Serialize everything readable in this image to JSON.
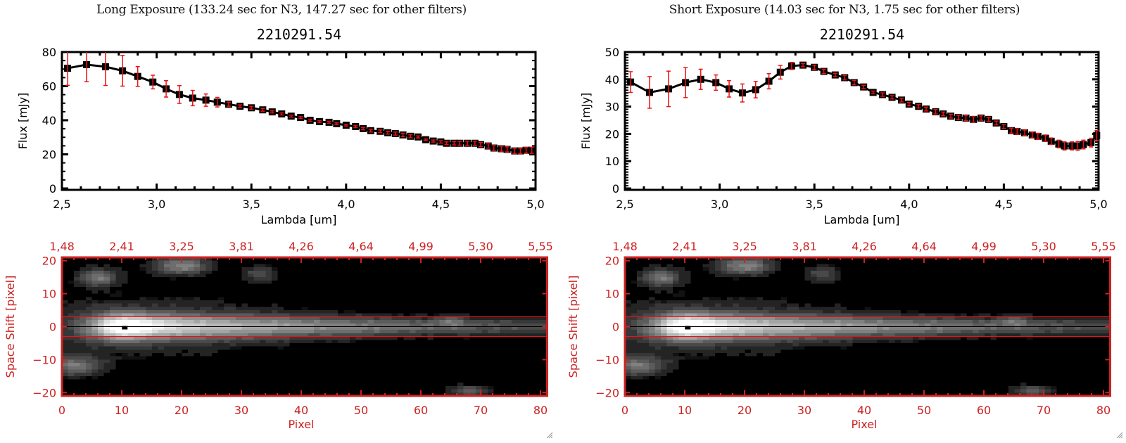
{
  "colors": {
    "axis_black": "#000000",
    "error_red": "#ee1111",
    "image_axis_red": "#cc2222",
    "aperture_line": "#ee1111",
    "center_line": "#000000"
  },
  "panels": [
    {
      "id": "long",
      "exposure_title": "Long Exposure (133.24 sec for N3, 147.27 sec for other filters)",
      "object_title": "2210291.54"
    },
    {
      "id": "short",
      "exposure_title": "Short Exposure (14.03 sec for N3, 1.75 sec for other filters)",
      "object_title": "2210291.54"
    }
  ],
  "chart_data": [
    {
      "panel": "long",
      "type": "line",
      "title": "2210291.54",
      "xlabel": "Lambda [um]",
      "ylabel": "Flux [mJy]",
      "xlim": [
        2.5,
        5.0
      ],
      "ylim": [
        0,
        80
      ],
      "xticks": [
        "2.5",
        "3.0",
        "3.5",
        "4.0",
        "4.5",
        "5.0"
      ],
      "xtick_values": [
        2.5,
        3.0,
        3.5,
        4.0,
        4.5,
        5.0
      ],
      "yticks": [
        "0",
        "20",
        "40",
        "60",
        "80"
      ],
      "ytick_values": [
        0,
        20,
        40,
        60,
        80
      ],
      "series": [
        {
          "name": "flux",
          "x": [
            2.53,
            2.63,
            2.73,
            2.82,
            2.9,
            2.98,
            3.05,
            3.12,
            3.19,
            3.26,
            3.32,
            3.38,
            3.44,
            3.5,
            3.56,
            3.61,
            3.66,
            3.71,
            3.76,
            3.81,
            3.86,
            3.91,
            3.95,
            4.0,
            4.05,
            4.09,
            4.13,
            4.18,
            4.22,
            4.26,
            4.3,
            4.34,
            4.38,
            4.42,
            4.46,
            4.5,
            4.53,
            4.57,
            4.6,
            4.64,
            4.68,
            4.71,
            4.75,
            4.78,
            4.82,
            4.85,
            4.89,
            4.92,
            4.95,
            4.98
          ],
          "y": [
            70.5,
            72.6,
            71.4,
            69.0,
            65.7,
            62.4,
            58.4,
            55.1,
            53.0,
            51.8,
            50.6,
            49.4,
            48.2,
            47.3,
            46.1,
            44.9,
            43.7,
            42.4,
            41.6,
            40.0,
            39.2,
            38.8,
            38.0,
            37.1,
            36.3,
            35.1,
            33.9,
            33.5,
            32.7,
            32.2,
            31.4,
            30.6,
            30.2,
            28.6,
            27.8,
            27.3,
            26.5,
            26.5,
            26.5,
            26.5,
            26.5,
            25.7,
            24.9,
            23.7,
            23.3,
            22.9,
            22.0,
            22.0,
            22.4,
            22.4
          ],
          "err": [
            10.0,
            10.0,
            11.0,
            9.0,
            5.8,
            4.0,
            4.8,
            5.2,
            4.5,
            3.6,
            2.8,
            1.2,
            0.8,
            0.9,
            0.8,
            0.6,
            0.6,
            0.6,
            0.5,
            0.6,
            0.5,
            0.6,
            0.5,
            0.5,
            0.6,
            0.7,
            0.8,
            0.8,
            0.8,
            0.9,
            1.0,
            0.9,
            0.6,
            0.4,
            0.6,
            0.7,
            0.8,
            1.0,
            1.1,
            1.2,
            1.2,
            1.2,
            1.3,
            1.4,
            1.5,
            1.5,
            1.5,
            1.6,
            1.6,
            1.8
          ]
        }
      ]
    },
    {
      "panel": "short",
      "type": "line",
      "title": "2210291.54",
      "xlabel": "Lambda [um]",
      "ylabel": "Flux [mJy]",
      "xlim": [
        2.5,
        5.0
      ],
      "ylim": [
        0,
        50
      ],
      "xticks": [
        "2.5",
        "3.0",
        "3.5",
        "4.0",
        "4.5",
        "5.0"
      ],
      "xtick_values": [
        2.5,
        3.0,
        3.5,
        4.0,
        4.5,
        5.0
      ],
      "yticks": [
        "0",
        "10",
        "20",
        "30",
        "40",
        "50"
      ],
      "ytick_values": [
        0,
        10,
        20,
        30,
        40,
        50
      ],
      "series": [
        {
          "name": "flux",
          "x": [
            2.53,
            2.63,
            2.73,
            2.82,
            2.9,
            2.98,
            3.05,
            3.12,
            3.19,
            3.26,
            3.32,
            3.38,
            3.44,
            3.5,
            3.55,
            3.61,
            3.66,
            3.71,
            3.76,
            3.81,
            3.86,
            3.91,
            3.96,
            4.0,
            4.05,
            4.09,
            4.14,
            4.18,
            4.22,
            4.26,
            4.3,
            4.34,
            4.38,
            4.42,
            4.46,
            4.5,
            4.54,
            4.57,
            4.61,
            4.65,
            4.68,
            4.72,
            4.75,
            4.79,
            4.82,
            4.86,
            4.89,
            4.92,
            4.96,
            4.99
          ],
          "y": [
            39.0,
            35.2,
            36.5,
            38.8,
            40.0,
            38.8,
            36.5,
            35.0,
            36.2,
            39.3,
            42.6,
            44.9,
            45.2,
            44.4,
            42.9,
            41.6,
            40.6,
            38.8,
            37.2,
            35.2,
            34.4,
            33.4,
            32.4,
            30.9,
            30.1,
            29.1,
            28.1,
            27.3,
            26.5,
            26.0,
            25.8,
            25.3,
            25.8,
            25.3,
            24.0,
            22.7,
            21.2,
            20.9,
            20.4,
            19.6,
            19.1,
            18.4,
            17.3,
            16.3,
            15.6,
            15.6,
            15.6,
            16.1,
            16.8,
            19.4
          ],
          "err": [
            3.8,
            5.8,
            6.5,
            5.5,
            3.7,
            2.8,
            3.0,
            3.3,
            3.0,
            2.8,
            2.5,
            1.3,
            0.6,
            0.8,
            0.8,
            0.6,
            0.8,
            0.8,
            0.6,
            0.5,
            0.6,
            0.6,
            0.7,
            0.6,
            0.6,
            0.7,
            0.8,
            0.7,
            0.7,
            0.8,
            0.9,
            1.0,
            0.8,
            0.7,
            0.7,
            0.7,
            0.9,
            1.0,
            1.0,
            1.1,
            1.1,
            1.2,
            1.2,
            1.4,
            1.5,
            1.5,
            1.6,
            1.6,
            1.6,
            1.8
          ]
        }
      ]
    },
    {
      "panel": "long",
      "type": "heatmap",
      "xlabel": "Pixel",
      "ylabel": "Space Shift [pixel]",
      "xlim": [
        0,
        81
      ],
      "ylim": [
        -21,
        21
      ],
      "xticks": [
        "0",
        "10",
        "20",
        "30",
        "40",
        "50",
        "60",
        "70",
        "80"
      ],
      "xtick_values": [
        0,
        10,
        20,
        30,
        40,
        50,
        60,
        70,
        80
      ],
      "yticks": [
        "-20",
        "-10",
        "0",
        "10",
        "20"
      ],
      "ytick_values": [
        -20,
        -10,
        0,
        10,
        20
      ],
      "top_axis_label_values": [
        "1.48",
        "2.41",
        "3.25",
        "3.81",
        "4.26",
        "4.64",
        "4.99",
        "5.30",
        "5.55"
      ],
      "aperture_lines": [
        3,
        -3
      ],
      "center_line": 0,
      "peak_marker": {
        "x": 10.5,
        "y": 0
      },
      "colormap": "grayscale",
      "sources": [
        {
          "x": 11,
          "y": 0,
          "sx": 4.5,
          "sy": 2.8,
          "amp": 1.0,
          "tail": 60
        },
        {
          "x": 6,
          "y": 15,
          "sx": 2.5,
          "sy": 2.0,
          "amp": 0.45
        },
        {
          "x": 20,
          "y": 18.5,
          "sx": 3.5,
          "sy": 2.0,
          "amp": 0.5
        },
        {
          "x": 33,
          "y": 16,
          "sx": 2.0,
          "sy": 1.8,
          "amp": 0.32
        },
        {
          "x": 2,
          "y": -12,
          "sx": 3.5,
          "sy": 2.2,
          "amp": 0.42
        },
        {
          "x": 68,
          "y": -19.5,
          "sx": 2.5,
          "sy": 1.3,
          "amp": 0.35
        },
        {
          "x": 65,
          "y": 2,
          "sx": 1.6,
          "sy": 1.2,
          "amp": 0.2
        }
      ]
    },
    {
      "panel": "short",
      "type": "heatmap",
      "xlabel": "Pixel",
      "ylabel": "Space Shift [pixel]",
      "xlim": [
        0,
        81
      ],
      "ylim": [
        -21,
        21
      ],
      "xticks": [
        "0",
        "10",
        "20",
        "30",
        "40",
        "50",
        "60",
        "70",
        "80"
      ],
      "xtick_values": [
        0,
        10,
        20,
        30,
        40,
        50,
        60,
        70,
        80
      ],
      "yticks": [
        "-20",
        "-10",
        "0",
        "10",
        "20"
      ],
      "ytick_values": [
        -20,
        -10,
        0,
        10,
        20
      ],
      "top_axis_label_values": [
        "1.48",
        "2.41",
        "3.25",
        "3.81",
        "4.26",
        "4.64",
        "4.99",
        "5.30",
        "5.55"
      ],
      "aperture_lines": [
        3,
        -3
      ],
      "center_line": 0,
      "peak_marker": {
        "x": 10.5,
        "y": 0
      },
      "colormap": "grayscale",
      "sources": [
        {
          "x": 11,
          "y": 0,
          "sx": 4.5,
          "sy": 2.8,
          "amp": 1.0,
          "tail": 60
        },
        {
          "x": 6,
          "y": 15,
          "sx": 2.5,
          "sy": 2.0,
          "amp": 0.45
        },
        {
          "x": 20,
          "y": 18.5,
          "sx": 3.5,
          "sy": 2.0,
          "amp": 0.5
        },
        {
          "x": 33,
          "y": 16,
          "sx": 2.0,
          "sy": 1.8,
          "amp": 0.32
        },
        {
          "x": 2,
          "y": -12,
          "sx": 3.5,
          "sy": 2.2,
          "amp": 0.42
        },
        {
          "x": 68,
          "y": -19.5,
          "sx": 2.5,
          "sy": 1.3,
          "amp": 0.35
        },
        {
          "x": 65,
          "y": 2,
          "sx": 1.6,
          "sy": 1.2,
          "amp": 0.2
        }
      ]
    }
  ]
}
